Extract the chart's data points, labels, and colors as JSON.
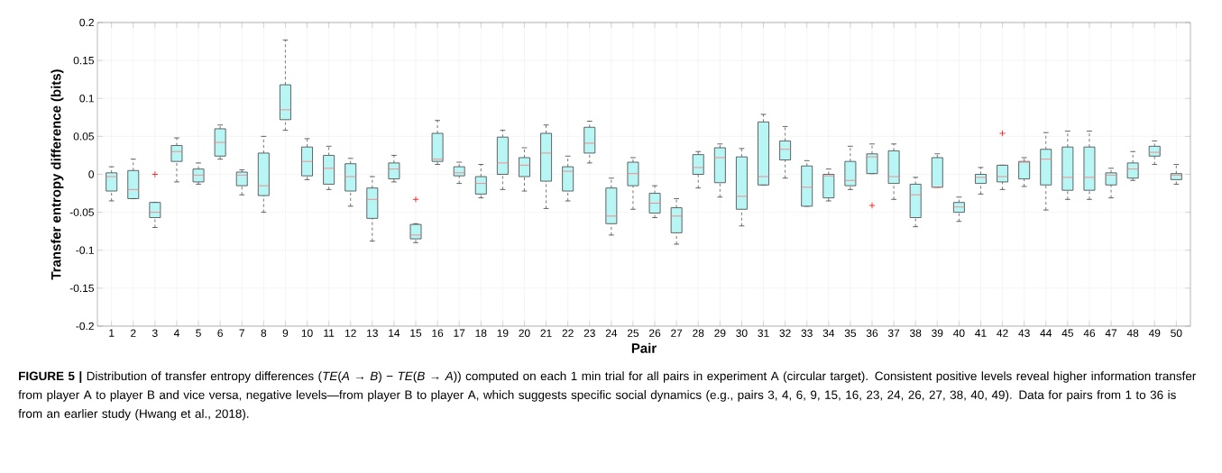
{
  "chart_data": {
    "type": "box",
    "xlabel": "Pair",
    "ylabel": "Transfer entropy difference (bits)",
    "categories": [
      "1",
      "2",
      "3",
      "4",
      "5",
      "6",
      "7",
      "8",
      "9",
      "10",
      "11",
      "12",
      "13",
      "14",
      "15",
      "16",
      "17",
      "18",
      "19",
      "20",
      "21",
      "22",
      "23",
      "24",
      "25",
      "26",
      "27",
      "28",
      "29",
      "30",
      "31",
      "32",
      "33",
      "34",
      "35",
      "36",
      "37",
      "38",
      "39",
      "40",
      "41",
      "42",
      "43",
      "44",
      "45",
      "46",
      "47",
      "48",
      "49",
      "50"
    ],
    "color": "#b8f5f5",
    "boxes": [
      {
        "low": -0.035,
        "q1": -0.022,
        "median": -0.003,
        "q3": 0.002,
        "high": 0.01
      },
      {
        "low": -0.032,
        "q1": -0.032,
        "median": -0.02,
        "q3": 0.005,
        "high": 0.02
      },
      {
        "low": -0.07,
        "q1": -0.057,
        "median": -0.05,
        "q3": -0.037,
        "high": -0.037,
        "outliers": [
          0
        ]
      },
      {
        "low": -0.01,
        "q1": 0.017,
        "median": 0.03,
        "q3": 0.038,
        "high": 0.048
      },
      {
        "low": -0.013,
        "q1": -0.01,
        "median": -0.001,
        "q3": 0.007,
        "high": 0.015
      },
      {
        "low": 0.02,
        "q1": 0.024,
        "median": 0.042,
        "q3": 0.06,
        "high": 0.065
      },
      {
        "low": -0.027,
        "q1": -0.015,
        "median": -0.001,
        "q3": 0.003,
        "high": 0.006
      },
      {
        "low": -0.05,
        "q1": -0.028,
        "median": -0.015,
        "q3": 0.028,
        "high": 0.05
      },
      {
        "low": 0.058,
        "q1": 0.072,
        "median": 0.085,
        "q3": 0.118,
        "high": 0.177
      },
      {
        "low": -0.007,
        "q1": -0.002,
        "median": 0.017,
        "q3": 0.036,
        "high": 0.047
      },
      {
        "low": -0.02,
        "q1": -0.013,
        "median": 0.008,
        "q3": 0.025,
        "high": 0.037
      },
      {
        "low": -0.042,
        "q1": -0.022,
        "median": -0.003,
        "q3": 0.014,
        "high": 0.021
      },
      {
        "low": -0.088,
        "q1": -0.058,
        "median": -0.033,
        "q3": -0.018,
        "high": -0.003
      },
      {
        "low": -0.01,
        "q1": -0.006,
        "median": 0.007,
        "q3": 0.015,
        "high": 0.025
      },
      {
        "low": -0.09,
        "q1": -0.085,
        "median": -0.08,
        "q3": -0.066,
        "high": -0.065,
        "outliers": [
          -0.033
        ]
      },
      {
        "low": 0.013,
        "q1": 0.017,
        "median": 0.02,
        "q3": 0.054,
        "high": 0.071
      },
      {
        "low": -0.012,
        "q1": -0.002,
        "median": 0.002,
        "q3": 0.01,
        "high": 0.016
      },
      {
        "low": -0.031,
        "q1": -0.026,
        "median": -0.012,
        "q3": -0.003,
        "high": 0.013
      },
      {
        "low": -0.02,
        "q1": 0,
        "median": 0.015,
        "q3": 0.049,
        "high": 0.058
      },
      {
        "low": -0.022,
        "q1": -0.003,
        "median": 0.012,
        "q3": 0.022,
        "high": 0.035
      },
      {
        "low": -0.045,
        "q1": -0.009,
        "median": 0.028,
        "q3": 0.054,
        "high": 0.065
      },
      {
        "low": -0.035,
        "q1": -0.022,
        "median": 0.004,
        "q3": 0.01,
        "high": 0.024
      },
      {
        "low": 0.015,
        "q1": 0.028,
        "median": 0.041,
        "q3": 0.062,
        "high": 0.07
      },
      {
        "low": -0.08,
        "q1": -0.065,
        "median": -0.055,
        "q3": -0.018,
        "high": -0.005
      },
      {
        "low": -0.046,
        "q1": -0.015,
        "median": 0.001,
        "q3": 0.016,
        "high": 0.022
      },
      {
        "low": -0.057,
        "q1": -0.051,
        "median": -0.038,
        "q3": -0.025,
        "high": -0.015
      },
      {
        "low": -0.092,
        "q1": -0.077,
        "median": -0.055,
        "q3": -0.044,
        "high": -0.032
      },
      {
        "low": -0.018,
        "q1": 0,
        "median": 0.009,
        "q3": 0.026,
        "high": 0.03
      },
      {
        "low": -0.03,
        "q1": -0.011,
        "median": 0.022,
        "q3": 0.035,
        "high": 0.04
      },
      {
        "low": -0.068,
        "q1": -0.046,
        "median": -0.029,
        "q3": 0.023,
        "high": 0.034
      },
      {
        "low": -0.014,
        "q1": -0.014,
        "median": -0.003,
        "q3": 0.069,
        "high": 0.079
      },
      {
        "low": -0.005,
        "q1": 0.019,
        "median": 0.033,
        "q3": 0.044,
        "high": 0.063
      },
      {
        "low": -0.042,
        "q1": -0.042,
        "median": -0.017,
        "q3": 0.011,
        "high": 0.018
      },
      {
        "low": -0.035,
        "q1": -0.031,
        "median": -0.002,
        "q3": 0,
        "high": 0.007
      },
      {
        "low": -0.02,
        "q1": -0.015,
        "median": -0.008,
        "q3": 0.017,
        "high": 0.037
      },
      {
        "low": 0.001,
        "q1": 0.001,
        "median": 0.023,
        "q3": 0.027,
        "high": 0.04,
        "outliers": [
          -0.041
        ]
      },
      {
        "low": -0.033,
        "q1": -0.012,
        "median": -0.003,
        "q3": 0.031,
        "high": 0.04
      },
      {
        "low": -0.069,
        "q1": -0.057,
        "median": -0.027,
        "q3": -0.013,
        "high": -0.004
      },
      {
        "low": -0.017,
        "q1": -0.017,
        "median": -0.017,
        "q3": 0.022,
        "high": 0.027
      },
      {
        "low": -0.062,
        "q1": -0.05,
        "median": -0.043,
        "q3": -0.037,
        "high": -0.03
      },
      {
        "low": -0.026,
        "q1": -0.012,
        "median": -0.004,
        "q3": 0,
        "high": 0.009
      },
      {
        "low": -0.02,
        "q1": -0.01,
        "median": -0.003,
        "q3": 0.012,
        "high": 0.012,
        "outliers": [
          0.054
        ]
      },
      {
        "low": -0.016,
        "q1": -0.006,
        "median": 0.016,
        "q3": 0.017,
        "high": 0.022
      },
      {
        "low": -0.047,
        "q1": -0.014,
        "median": 0.02,
        "q3": 0.033,
        "high": 0.055
      },
      {
        "low": -0.033,
        "q1": -0.021,
        "median": -0.004,
        "q3": 0.036,
        "high": 0.057
      },
      {
        "low": -0.033,
        "q1": -0.021,
        "median": -0.004,
        "q3": 0.036,
        "high": 0.057
      },
      {
        "low": -0.031,
        "q1": -0.014,
        "median": -0.001,
        "q3": 0.002,
        "high": 0.008
      },
      {
        "low": -0.008,
        "q1": -0.005,
        "median": 0.007,
        "q3": 0.015,
        "high": 0.03
      },
      {
        "low": 0.013,
        "q1": 0.024,
        "median": 0.029,
        "q3": 0.037,
        "high": 0.044
      },
      {
        "low": -0.013,
        "q1": -0.007,
        "median": -0.001,
        "q3": 0.001,
        "high": 0.013
      }
    ],
    "ylim": [
      -0.2,
      0.2
    ],
    "yticks": [
      -0.2,
      -0.15,
      -0.1,
      -0.05,
      0,
      0.05,
      0.1,
      0.15,
      0.2
    ],
    "grid": true,
    "annotations": [
      "**FIGURE 5 |** Distribution of transfer entropy differences (*TE*(*A* → *B*) − *TE*(*B* → *A*)) computed on each 1 min trial for all pairs in experiment A (circular target). Consistent positive levels reveal higher information transfer from player A to player B and vice versa, negative levels—from player B to player A, which suggests specific social dynamics (e.g., pairs 3, 4, 6, 9, 15, 16, 23, 24, 26, 27, 38, 40, 49). Data for pairs from 1 to 36 is from an earlier study (Hwang et al., 2018)."
    ]
  }
}
